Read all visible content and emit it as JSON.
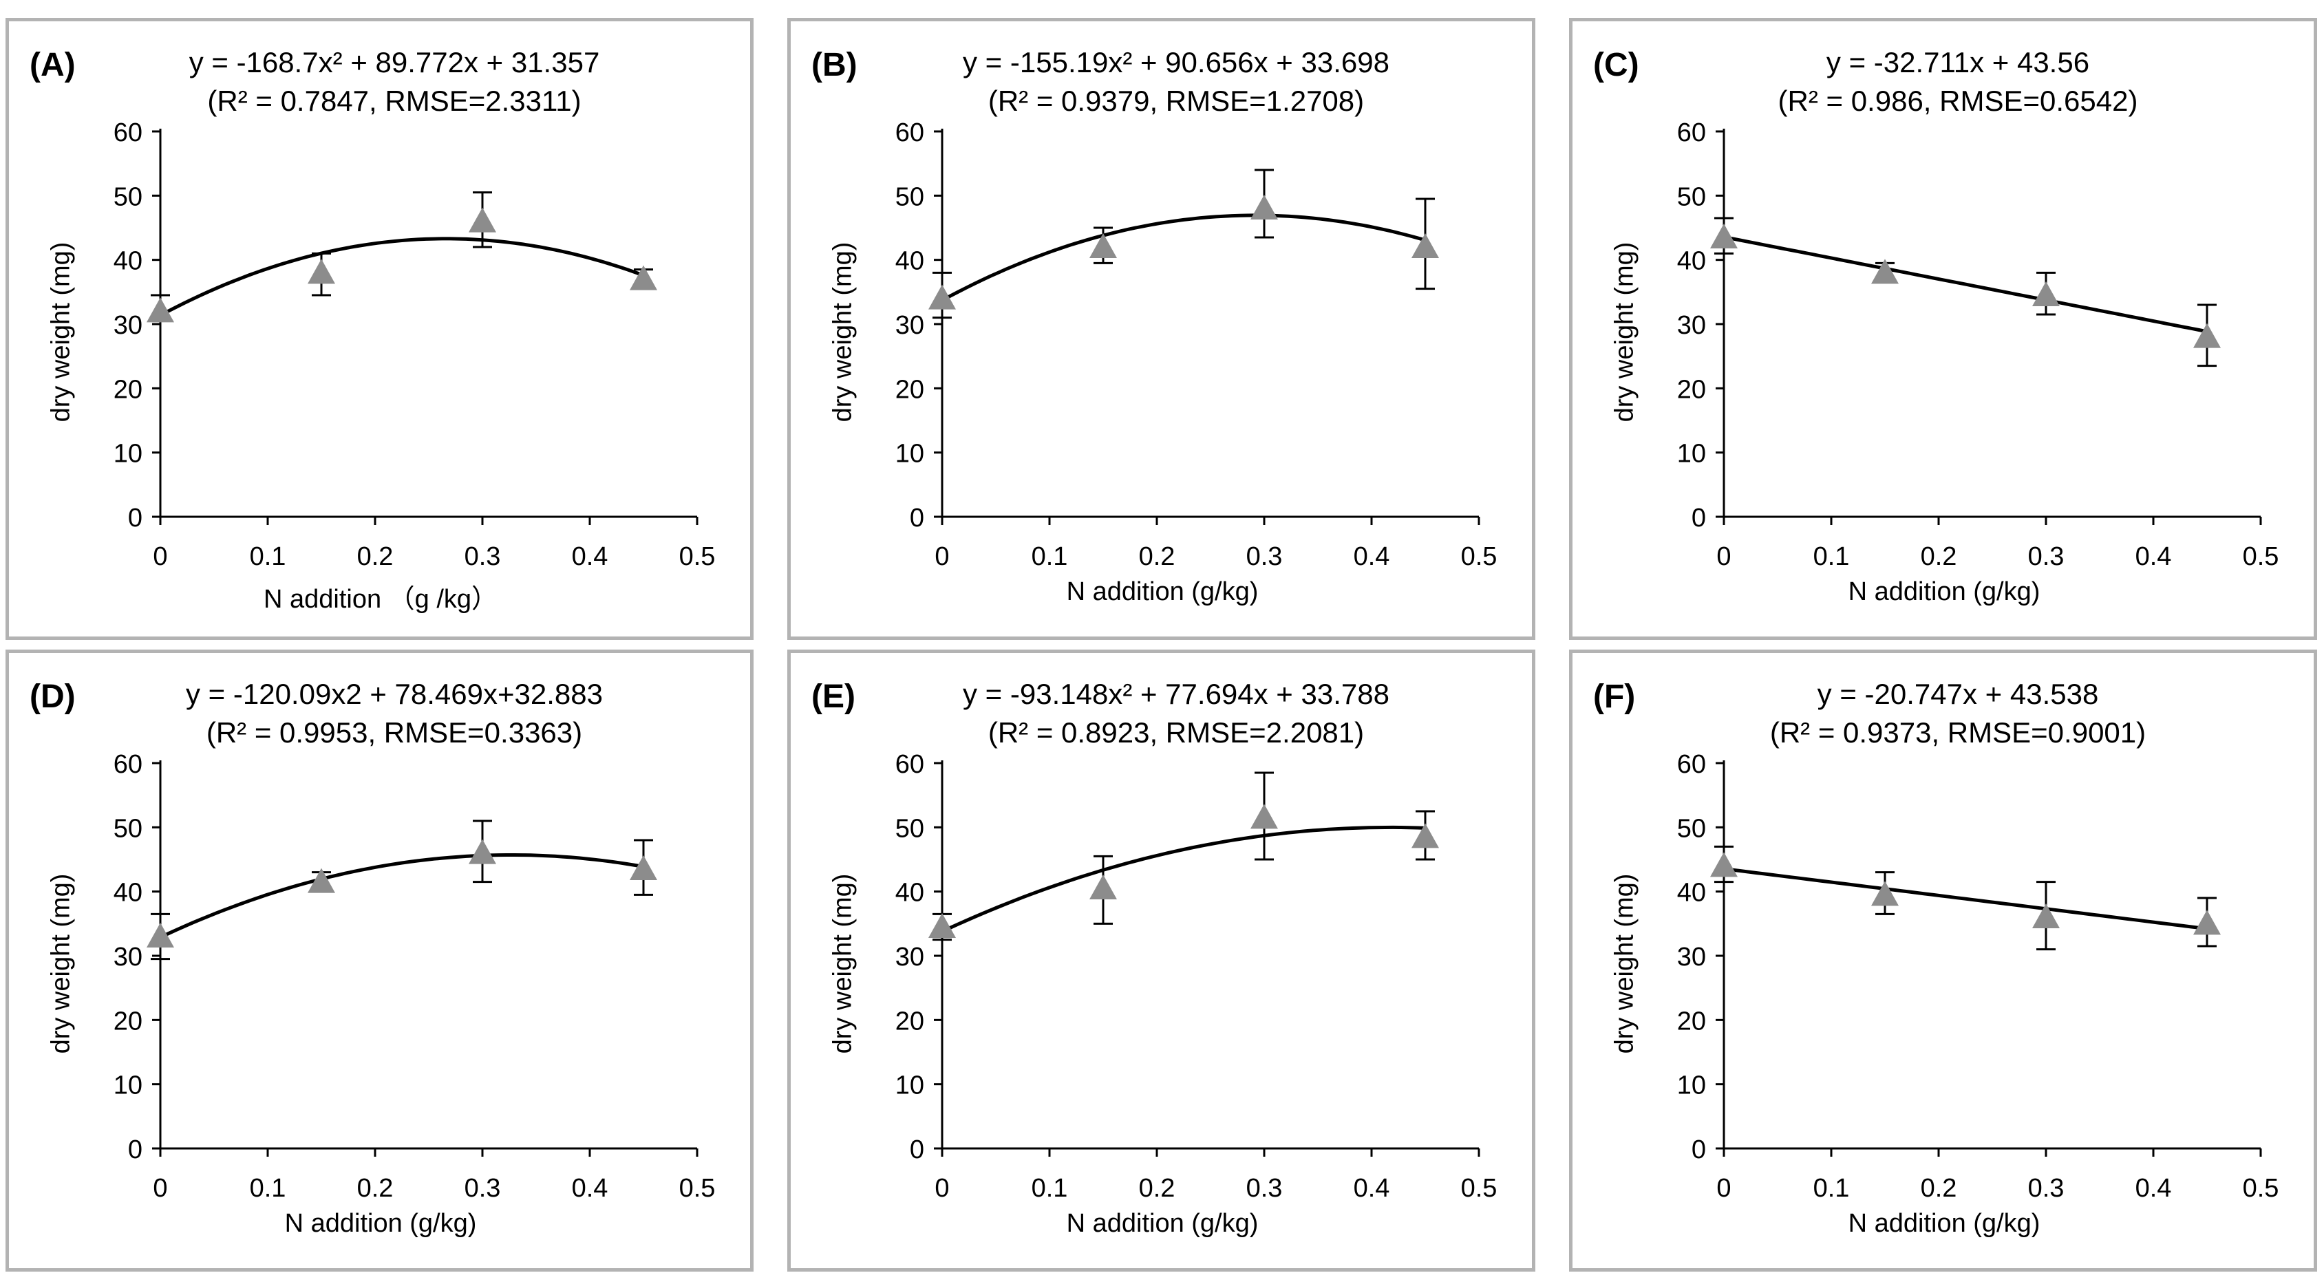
{
  "chart_data": [
    {
      "panel": "(A)",
      "type": "scatter",
      "equation": "y = -168.7x² + 89.772x + 31.357",
      "stats": "(R² = 0.7847, RMSE=2.3311)",
      "xlabel": "N addition （g /kg）",
      "ylabel": "dry weight (mg)",
      "xlim": [
        0,
        0.5
      ],
      "ylim": [
        0,
        60
      ],
      "xticks": [
        "0",
        "0.1",
        "0.2",
        "0.3",
        "0.4",
        "0.5"
      ],
      "yticks": [
        "0",
        "10",
        "20",
        "30",
        "40",
        "50",
        "60"
      ],
      "x": [
        0,
        0.15,
        0.3,
        0.45
      ],
      "y": [
        32,
        38,
        46,
        37
      ],
      "err_upper": [
        34.5,
        41,
        50.5,
        38.5
      ],
      "err_lower": [
        30.5,
        34.5,
        42,
        36
      ],
      "fit": {
        "kind": "poly2",
        "a": -168.7,
        "b": 89.772,
        "c": 31.357
      }
    },
    {
      "panel": "(B)",
      "type": "scatter",
      "equation": "y = -155.19x² + 90.656x + 33.698",
      "stats": "(R² = 0.9379, RMSE=1.2708)",
      "xlabel": "N addition (g/kg)",
      "ylabel": "dry weight (mg)",
      "xlim": [
        0,
        0.5
      ],
      "ylim": [
        0,
        60
      ],
      "xticks": [
        "0",
        "0.1",
        "0.2",
        "0.3",
        "0.4",
        "0.5"
      ],
      "yticks": [
        "0",
        "10",
        "20",
        "30",
        "40",
        "50",
        "60"
      ],
      "x": [
        0,
        0.15,
        0.3,
        0.45
      ],
      "y": [
        34,
        42,
        48,
        42
      ],
      "err_upper": [
        38,
        45,
        54,
        49.5
      ],
      "err_lower": [
        31,
        39.5,
        43.5,
        35.5
      ],
      "fit": {
        "kind": "poly2",
        "a": -155.19,
        "b": 90.656,
        "c": 33.698
      }
    },
    {
      "panel": "(C)",
      "type": "scatter",
      "equation": "y = -32.711x + 43.56",
      "stats": "(R² = 0.986, RMSE=0.6542)",
      "xlabel": "N addition (g/kg)",
      "ylabel": "dry weight (mg)",
      "xlim": [
        0,
        0.5
      ],
      "ylim": [
        0,
        60
      ],
      "xticks": [
        "0",
        "0.1",
        "0.2",
        "0.3",
        "0.4",
        "0.5"
      ],
      "yticks": [
        "0",
        "10",
        "20",
        "30",
        "40",
        "50",
        "60"
      ],
      "x": [
        0,
        0.15,
        0.3,
        0.45
      ],
      "y": [
        43.5,
        38,
        34.5,
        28
      ],
      "err_upper": [
        46.5,
        39.5,
        38,
        33
      ],
      "err_lower": [
        41,
        36.5,
        31.5,
        23.5
      ],
      "fit": {
        "kind": "linear",
        "m": -32.711,
        "c": 43.56
      }
    },
    {
      "panel": "(D)",
      "type": "scatter",
      "equation": "y = -120.09x2 + 78.469x+32.883",
      "stats": "(R² = 0.9953, RMSE=0.3363)",
      "xlabel": "N  addition (g/kg)",
      "ylabel": "dry weight (mg)",
      "xlim": [
        0,
        0.5
      ],
      "ylim": [
        0,
        60
      ],
      "xticks": [
        "0",
        "0.1",
        "0.2",
        "0.3",
        "0.4",
        "0.5"
      ],
      "yticks": [
        "0",
        "10",
        "20",
        "30",
        "40",
        "50",
        "60"
      ],
      "x": [
        0,
        0.15,
        0.3,
        0.45
      ],
      "y": [
        33,
        41.5,
        46,
        43.5
      ],
      "err_upper": [
        36.5,
        43,
        51,
        48
      ],
      "err_lower": [
        29.5,
        40,
        41.5,
        39.5
      ],
      "fit": {
        "kind": "poly2",
        "a": -120.09,
        "b": 78.469,
        "c": 32.883
      }
    },
    {
      "panel": "(E)",
      "type": "scatter",
      "equation": "y = -93.148x² + 77.694x + 33.788",
      "stats": "(R² = 0.8923, RMSE=2.2081)",
      "xlabel": "N addition (g/kg)",
      "ylabel": "dry weight (mg)",
      "xlim": [
        0,
        0.5
      ],
      "ylim": [
        0,
        60
      ],
      "xticks": [
        "0",
        "0.1",
        "0.2",
        "0.3",
        "0.4",
        "0.5"
      ],
      "yticks": [
        "0",
        "10",
        "20",
        "30",
        "40",
        "50",
        "60"
      ],
      "x": [
        0,
        0.15,
        0.3,
        0.45
      ],
      "y": [
        34.5,
        40.5,
        51.5,
        48.5
      ],
      "err_upper": [
        36.5,
        45.5,
        58.5,
        52.5
      ],
      "err_lower": [
        32.5,
        35,
        45,
        45
      ],
      "fit": {
        "kind": "poly2",
        "a": -93.148,
        "b": 77.694,
        "c": 33.788
      }
    },
    {
      "panel": "(F)",
      "type": "scatter",
      "equation": "y = -20.747x + 43.538",
      "stats": "(R² = 0.9373, RMSE=0.9001)",
      "xlabel": "N addition (g/kg)",
      "ylabel": "dry weight (mg)",
      "xlim": [
        0,
        0.5
      ],
      "ylim": [
        0,
        60
      ],
      "xticks": [
        "0",
        "0.1",
        "0.2",
        "0.3",
        "0.4",
        "0.5"
      ],
      "yticks": [
        "0",
        "10",
        "20",
        "30",
        "40",
        "50",
        "60"
      ],
      "x": [
        0,
        0.15,
        0.3,
        0.45
      ],
      "y": [
        44,
        39.5,
        36,
        35
      ],
      "err_upper": [
        47,
        43,
        41.5,
        39
      ],
      "err_lower": [
        41.5,
        36.5,
        31,
        31.5
      ],
      "fit": {
        "kind": "linear",
        "m": -20.747,
        "c": 43.538
      }
    }
  ],
  "colors": {
    "marker": "#8c8c8c",
    "line": "#000000",
    "frame": "#b3b3b3"
  }
}
